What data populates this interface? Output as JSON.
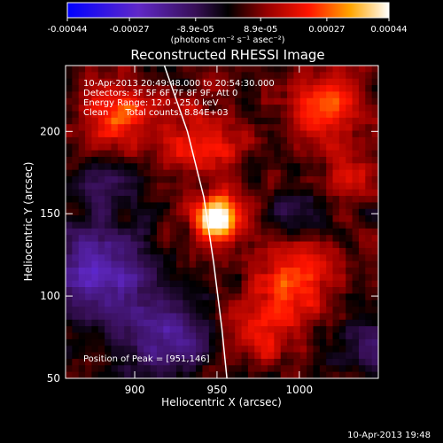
{
  "chart_data": {
    "type": "heatmap",
    "title": "Reconstructed RHESSI Image",
    "xlabel": "Heliocentric X (arcsec)",
    "ylabel": "Heliocentric Y (arcsec)",
    "xlim": [
      858,
      1048
    ],
    "ylim": [
      50,
      240
    ],
    "x_ticks": [
      900,
      950,
      1000
    ],
    "y_ticks": [
      50,
      100,
      150,
      200
    ],
    "colorbar": {
      "min": -0.00044,
      "max": 0.00044,
      "tick_values": [
        -0.00044,
        -0.00027,
        -8.9e-05,
        8.9e-05,
        0.00027,
        0.00044
      ],
      "tick_labels": [
        "-0.00044",
        "-0.00027",
        "-8.9e-05",
        "8.9e-05",
        "0.00027",
        "0.00044"
      ],
      "units": "(photons cm⁻² s⁻¹ asec⁻²)"
    },
    "annotations": [
      "10-Apr-2013 20:49:48.000 to 20:54:30.000",
      "Detectors: 3F 5F 6F 7F 8F 9F, Att 0",
      "Energy Range: 12.0 - 25.0 keV",
      "Clean      Total counts: 8.84E+03"
    ],
    "peak_label": "Position of Peak = [951,146]",
    "peak": {
      "x": 951,
      "y": 146
    },
    "limb_points": [
      [
        918,
        240
      ],
      [
        932,
        200
      ],
      [
        942,
        160
      ],
      [
        948,
        120
      ],
      [
        953,
        80
      ],
      [
        956,
        50
      ]
    ],
    "sources": [
      {
        "x": 951,
        "y": 146,
        "sigma": 10,
        "amp": 0.00044
      },
      {
        "x": 998,
        "y": 112,
        "sigma": 16,
        "amp": 0.00024
      },
      {
        "x": 1018,
        "y": 215,
        "sigma": 14,
        "amp": 0.00023
      },
      {
        "x": 890,
        "y": 210,
        "sigma": 14,
        "amp": 0.00022
      },
      {
        "x": 940,
        "y": 195,
        "sigma": 18,
        "amp": 0.00016
      },
      {
        "x": 975,
        "y": 80,
        "sigma": 14,
        "amp": 0.00018
      },
      {
        "x": 1035,
        "y": 175,
        "sigma": 12,
        "amp": 0.00014
      },
      {
        "x": 880,
        "y": 168,
        "sigma": 10,
        "amp": -0.00017
      },
      {
        "x": 880,
        "y": 115,
        "sigma": 20,
        "amp": -0.00028
      },
      {
        "x": 920,
        "y": 75,
        "sigma": 18,
        "amp": -0.00022
      },
      {
        "x": 1000,
        "y": 150,
        "sigma": 10,
        "amp": -0.00012
      },
      {
        "x": 1040,
        "y": 68,
        "sigma": 14,
        "amp": -0.00015
      }
    ]
  },
  "footer": {
    "timestamp": "10-Apr-2013 19:48"
  }
}
